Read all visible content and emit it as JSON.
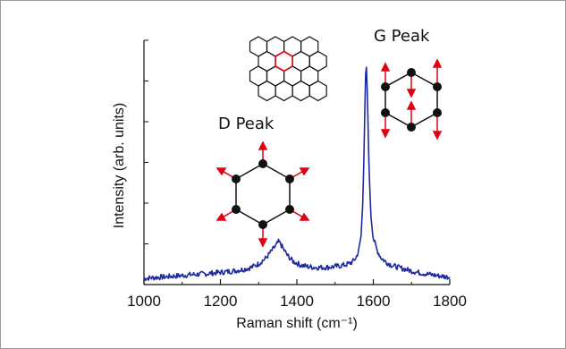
{
  "chart_data": {
    "type": "line",
    "title": "",
    "xlabel": "Raman shift (cm⁻¹)",
    "ylabel": "Intensity (arb. units)",
    "xlim": [
      1000,
      1800
    ],
    "xticks": [
      1000,
      1200,
      1400,
      1600,
      1800
    ],
    "ylim": [
      0,
      1
    ],
    "ytick_labels": false,
    "grid": false,
    "legend": "none",
    "series": [
      {
        "color": "#1f2aa0",
        "points": [
          [
            1000,
            0.025
          ],
          [
            1020,
            0.028
          ],
          [
            1040,
            0.03
          ],
          [
            1060,
            0.032
          ],
          [
            1080,
            0.035
          ],
          [
            1100,
            0.037
          ],
          [
            1120,
            0.04
          ],
          [
            1140,
            0.042
          ],
          [
            1160,
            0.044
          ],
          [
            1180,
            0.047
          ],
          [
            1200,
            0.05
          ],
          [
            1220,
            0.053
          ],
          [
            1240,
            0.057
          ],
          [
            1260,
            0.062
          ],
          [
            1280,
            0.07
          ],
          [
            1300,
            0.085
          ],
          [
            1320,
            0.11
          ],
          [
            1335,
            0.14
          ],
          [
            1345,
            0.16
          ],
          [
            1352,
            0.175
          ],
          [
            1358,
            0.165
          ],
          [
            1365,
            0.145
          ],
          [
            1375,
            0.12
          ],
          [
            1390,
            0.095
          ],
          [
            1410,
            0.08
          ],
          [
            1430,
            0.073
          ],
          [
            1450,
            0.07
          ],
          [
            1470,
            0.07
          ],
          [
            1490,
            0.072
          ],
          [
            1510,
            0.076
          ],
          [
            1530,
            0.082
          ],
          [
            1545,
            0.092
          ],
          [
            1555,
            0.11
          ],
          [
            1562,
            0.14
          ],
          [
            1568,
            0.2
          ],
          [
            1572,
            0.32
          ],
          [
            1575,
            0.5
          ],
          [
            1578,
            0.72
          ],
          [
            1580,
            0.86
          ],
          [
            1582,
            0.88
          ],
          [
            1584,
            0.8
          ],
          [
            1587,
            0.6
          ],
          [
            1590,
            0.42
          ],
          [
            1594,
            0.28
          ],
          [
            1600,
            0.19
          ],
          [
            1610,
            0.14
          ],
          [
            1620,
            0.11
          ],
          [
            1635,
            0.09
          ],
          [
            1650,
            0.078
          ],
          [
            1670,
            0.068
          ],
          [
            1690,
            0.06
          ],
          [
            1710,
            0.052
          ],
          [
            1730,
            0.046
          ],
          [
            1750,
            0.041
          ],
          [
            1770,
            0.036
          ],
          [
            1790,
            0.032
          ],
          [
            1800,
            0.03
          ]
        ]
      }
    ],
    "annotations": [
      {
        "id": "d-peak",
        "text": "D Peak"
      },
      {
        "id": "g-peak",
        "text": "G Peak"
      }
    ]
  }
}
